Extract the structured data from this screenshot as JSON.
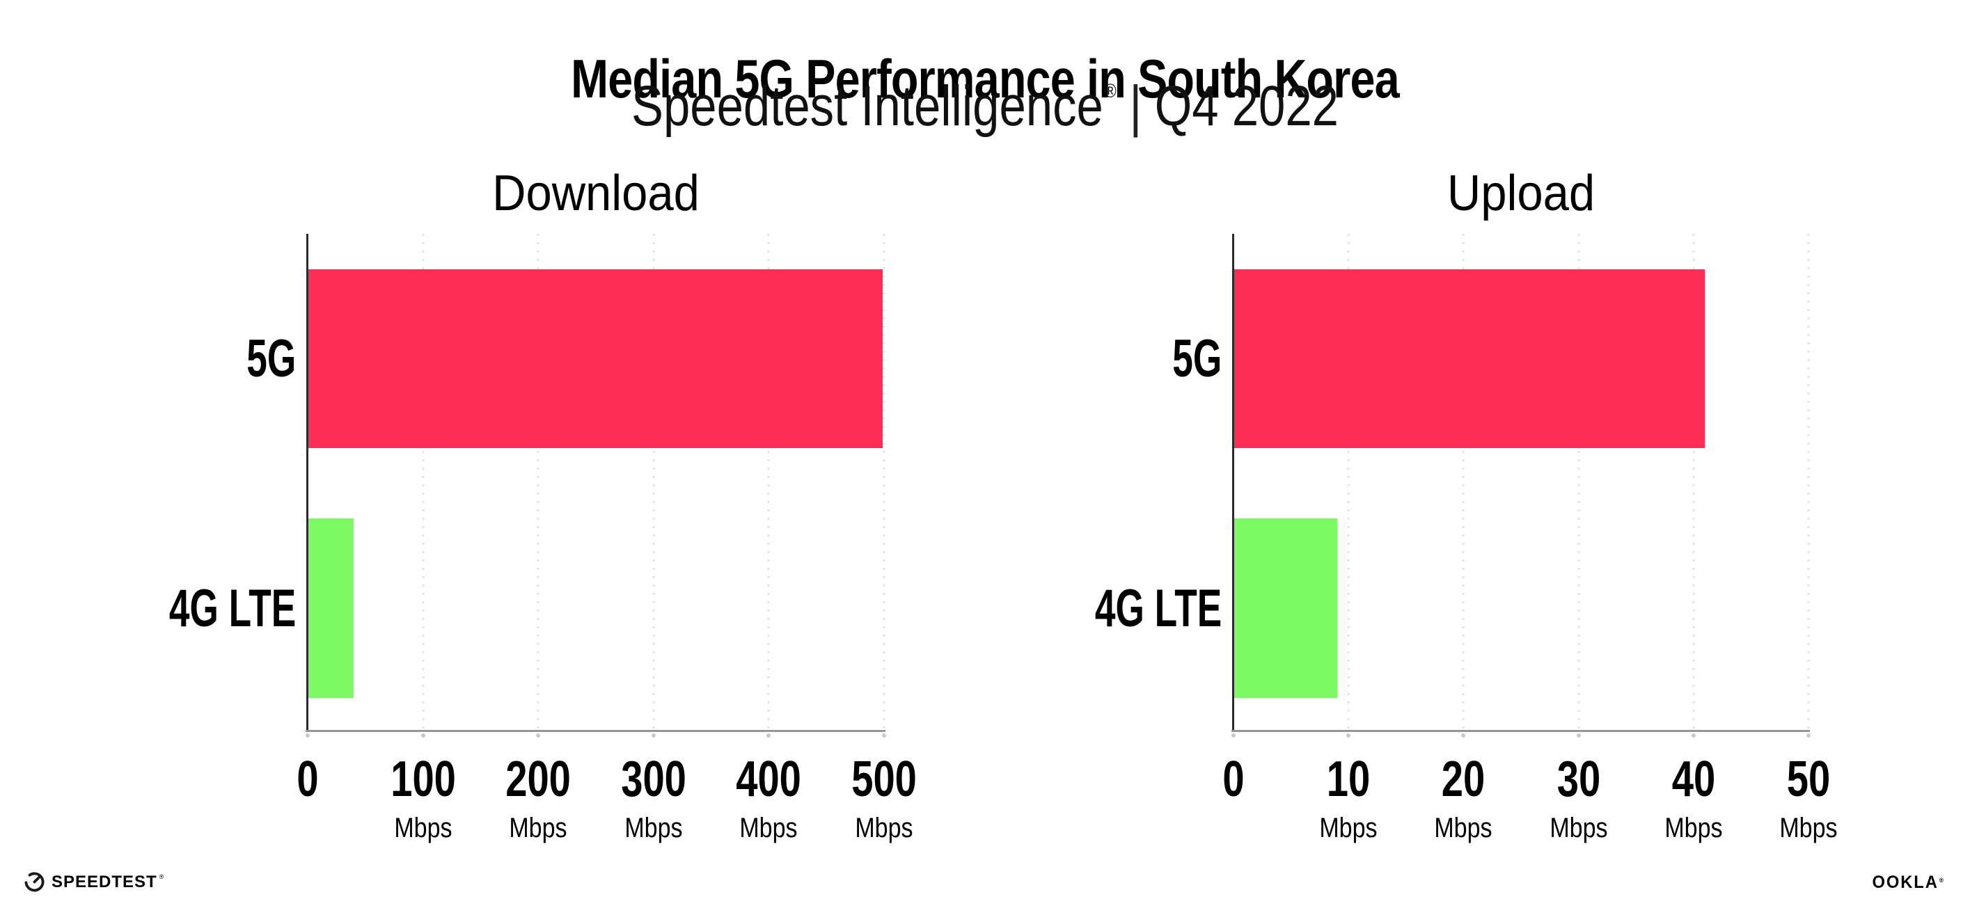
{
  "header": {
    "title": "Median 5G Performance in South Korea",
    "subtitle_brand": "Speedtest Intelligence",
    "subtitle_reg_mark": "®",
    "subtitle_divider": "|",
    "subtitle_period": "Q4 2022"
  },
  "chart_data": [
    {
      "type": "bar",
      "orientation": "horizontal",
      "title": "Download",
      "categories": [
        "5G",
        "4G LTE"
      ],
      "values": [
        499,
        40
      ],
      "value_unit": "Mbps",
      "xlim": [
        0,
        500
      ],
      "xticks": [
        0,
        100,
        200,
        300,
        400,
        500
      ],
      "tick_labels": [
        {
          "label": "0",
          "unit": ""
        },
        {
          "label": "100",
          "unit": "Mbps"
        },
        {
          "label": "200",
          "unit": "Mbps"
        },
        {
          "label": "300",
          "unit": "Mbps"
        },
        {
          "label": "400",
          "unit": "Mbps"
        },
        {
          "label": "500",
          "unit": "Mbps"
        }
      ],
      "bar_colors": [
        "#FF2D55",
        "#7DF964"
      ],
      "grid": "vertical-dotted",
      "legend": "none"
    },
    {
      "type": "bar",
      "orientation": "horizontal",
      "title": "Upload",
      "categories": [
        "5G",
        "4G LTE"
      ],
      "values": [
        41,
        9
      ],
      "value_unit": "Mbps",
      "xlim": [
        0,
        50
      ],
      "xticks": [
        0,
        10,
        20,
        30,
        40,
        50
      ],
      "tick_labels": [
        {
          "label": "0",
          "unit": ""
        },
        {
          "label": "10",
          "unit": "Mbps"
        },
        {
          "label": "20",
          "unit": "Mbps"
        },
        {
          "label": "30",
          "unit": "Mbps"
        },
        {
          "label": "40",
          "unit": "Mbps"
        },
        {
          "label": "50",
          "unit": "Mbps"
        }
      ],
      "bar_colors": [
        "#FF2D55",
        "#7DF964"
      ],
      "grid": "vertical-dotted",
      "legend": "none"
    }
  ],
  "footer": {
    "speedtest_wordmark": "SPEEDTEST",
    "speedtest_reg_mark": "®",
    "speedtest_icon": "speedtest-gauge-icon",
    "ookla_wordmark": "OOKLA",
    "ookla_reg_mark": "®"
  },
  "colors": {
    "bar_5g": "#FF2D55",
    "bar_4g_lte": "#7DF964",
    "background": "#FFFFFF",
    "text": "#000000",
    "gridline": "#E2E2EC",
    "x_axis_line": "#95959B",
    "y_axis_spine": "#2A2A2F",
    "tick_dot": "#C8C8D2"
  }
}
